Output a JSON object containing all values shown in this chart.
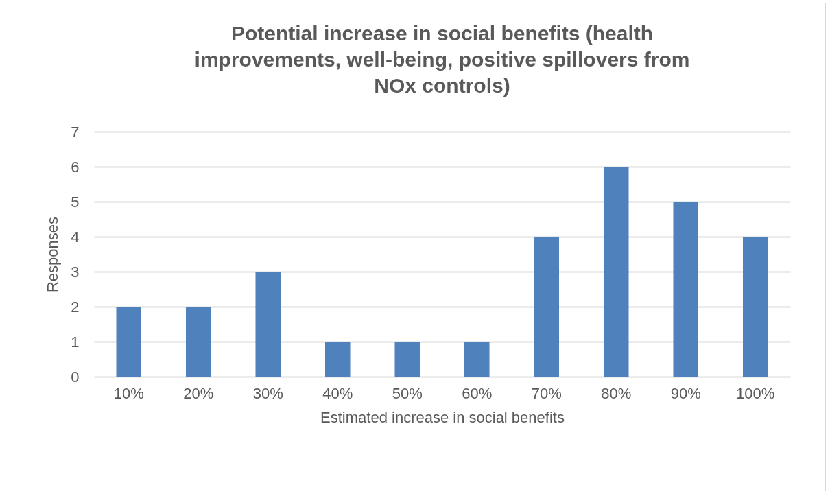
{
  "chart_data": {
    "type": "bar",
    "title": "Potential increase in social benefits (health improvements, well-being, positive spillovers from NOx controls)",
    "categories": [
      "10%",
      "20%",
      "30%",
      "40%",
      "50%",
      "60%",
      "70%",
      "80%",
      "90%",
      "100%"
    ],
    "values": [
      2,
      2,
      3,
      1,
      1,
      1,
      4,
      6,
      5,
      4
    ],
    "color": "#4f81bd",
    "xlabel": "Estimated increase in social benefits",
    "ylabel": "Responses",
    "ylim": [
      0,
      7
    ],
    "yticks": [
      0,
      1,
      2,
      3,
      4,
      5,
      6,
      7
    ],
    "grid": "y"
  }
}
